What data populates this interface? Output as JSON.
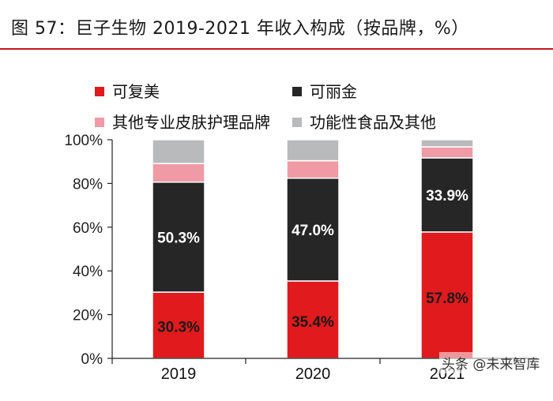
{
  "figure": {
    "title": "图 57：巨子生物 2019-2021 年收入构成（按品牌，%）"
  },
  "watermark": "头条 @未来智库",
  "colors": {
    "accent_rule": "#c0161c",
    "axis": "#222222"
  },
  "chart_data": {
    "type": "bar",
    "stacked": true,
    "categories": [
      "2019",
      "2020",
      "2021"
    ],
    "ylim": [
      0,
      100
    ],
    "yticks": [
      0,
      20,
      40,
      60,
      80,
      100
    ],
    "ytick_labels": [
      "0%",
      "20%",
      "40%",
      "60%",
      "80%",
      "100%"
    ],
    "legend_position": "top",
    "series": [
      {
        "name": "可复美",
        "color": "#e01a1d",
        "label_color": "#1a1a1a",
        "values": [
          30.3,
          35.4,
          57.8
        ],
        "labels": [
          "30.3%",
          "35.4%",
          "57.8%"
        ]
      },
      {
        "name": "可丽金",
        "color": "#262626",
        "label_color": "#ffffff",
        "values": [
          50.3,
          47.0,
          33.9
        ],
        "labels": [
          "50.3%",
          "47.0%",
          "33.9%"
        ]
      },
      {
        "name": "其他专业皮肤护理品牌",
        "color": "#ef9aa5",
        "values": [
          8.5,
          8.0,
          5.0
        ]
      },
      {
        "name": "功能性食品及其他",
        "color": "#b9babb",
        "values": [
          10.9,
          9.6,
          3.3
        ]
      }
    ]
  }
}
